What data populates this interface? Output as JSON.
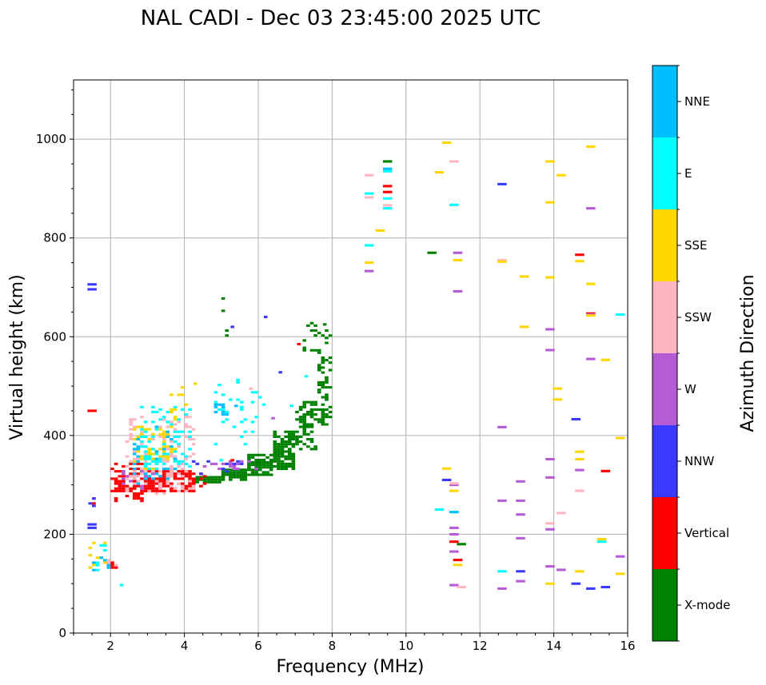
{
  "chart_data": {
    "type": "scatter",
    "title": "NAL CADI - Dec 03 23:45:00 2025 UTC",
    "xlabel": "Frequency (MHz)",
    "ylabel": "Virtual height (km)",
    "xlim": [
      1,
      16
    ],
    "ylim": [
      0,
      1120
    ],
    "xticks": [
      2,
      4,
      6,
      8,
      10,
      12,
      14,
      16
    ],
    "yticks": [
      0,
      200,
      400,
      600,
      800,
      1000
    ],
    "grid": true,
    "colorbar": {
      "title": "Azimuth Direction",
      "categories": [
        "X-mode",
        "Vertical",
        "NNW",
        "W",
        "SSW",
        "SSE",
        "E",
        "NNE"
      ],
      "colors": {
        "X-mode": "#008000",
        "Vertical": "#ff0000",
        "NNW": "#3a3aff",
        "W": "#b55bd6",
        "SSW": "#ffb6c1",
        "SSE": "#ffd700",
        "E": "#00ffff",
        "NNE": "#00bfff"
      }
    },
    "cell_size": {
      "freq_mhz": 0.1,
      "height_km": 5
    },
    "series": [
      {
        "name": "X-mode",
        "bands": [
          [
            4.3,
            5.0,
            303,
            318,
            0.9
          ],
          [
            5.0,
            5.7,
            308,
            330,
            0.85
          ],
          [
            5.7,
            6.4,
            318,
            360,
            0.8
          ],
          [
            6.4,
            7.0,
            330,
            410,
            0.7
          ],
          [
            7.0,
            7.6,
            370,
            470,
            0.55
          ],
          [
            7.6,
            8.0,
            420,
            560,
            0.4
          ],
          [
            7.2,
            8.0,
            560,
            630,
            0.15
          ],
          [
            5.0,
            5.2,
            560,
            700,
            0.15
          ]
        ],
        "points": [
          [
            9.5,
            955
          ],
          [
            10.7,
            770
          ],
          [
            11.5,
            180
          ],
          [
            7.8,
            625
          ]
        ]
      },
      {
        "name": "Vertical",
        "bands": [
          [
            2.0,
            3.0,
            265,
            345,
            0.45
          ],
          [
            3.0,
            4.3,
            285,
            330,
            0.6
          ],
          [
            1.5,
            1.6,
            255,
            275,
            0.8
          ],
          [
            4.0,
            4.6,
            290,
            330,
            0.3
          ],
          [
            1.9,
            2.2,
            130,
            150,
            0.4
          ]
        ],
        "points": [
          [
            1.5,
            450
          ],
          [
            9.5,
            905
          ],
          [
            9.5,
            893
          ],
          [
            14.7,
            766
          ],
          [
            15.0,
            647
          ],
          [
            15.4,
            328
          ],
          [
            11.3,
            185
          ],
          [
            11.4,
            148
          ],
          [
            7.1,
            585
          ],
          [
            5.3,
            350
          ]
        ]
      },
      {
        "name": "NNW",
        "bands": [
          [
            1.4,
            1.6,
            255,
            275,
            0.5
          ],
          [
            4.2,
            5.6,
            320,
            350,
            0.2
          ]
        ],
        "points": [
          [
            1.5,
            706
          ],
          [
            1.5,
            696
          ],
          [
            1.5,
            220
          ],
          [
            1.5,
            213
          ],
          [
            12.6,
            909
          ],
          [
            13.1,
            125
          ],
          [
            14.6,
            433
          ],
          [
            15.0,
            90
          ],
          [
            15.4,
            93
          ],
          [
            6.2,
            640
          ],
          [
            5.3,
            620
          ],
          [
            6.6,
            528
          ],
          [
            14.6,
            100
          ],
          [
            11.1,
            310
          ]
        ]
      },
      {
        "name": "W",
        "bands": [
          [
            2.3,
            3.2,
            290,
            330,
            0.2
          ],
          [
            4.5,
            6.0,
            330,
            350,
            0.2
          ]
        ],
        "points": [
          [
            9.0,
            733
          ],
          [
            11.4,
            770
          ],
          [
            11.4,
            692
          ],
          [
            15.0,
            860
          ],
          [
            15.0,
            555
          ],
          [
            15.0,
            645
          ],
          [
            13.9,
            615
          ],
          [
            13.9,
            573
          ],
          [
            12.6,
            417
          ],
          [
            13.9,
            352
          ],
          [
            13.9,
            315
          ],
          [
            13.1,
            307
          ],
          [
            14.7,
            330
          ],
          [
            12.6,
            268
          ],
          [
            13.1,
            268
          ],
          [
            13.1,
            240
          ],
          [
            13.9,
            210
          ],
          [
            13.1,
            192
          ],
          [
            11.3,
            300
          ],
          [
            11.3,
            213
          ],
          [
            11.3,
            200
          ],
          [
            11.3,
            165
          ],
          [
            13.9,
            135
          ],
          [
            14.2,
            128
          ],
          [
            15.8,
            155
          ],
          [
            11.3,
            97
          ],
          [
            12.6,
            90
          ],
          [
            13.1,
            105
          ],
          [
            6.4,
            435
          ]
        ]
      },
      {
        "name": "SSW",
        "bands": [
          [
            2.4,
            4.3,
            280,
            440,
            0.18
          ],
          [
            1.8,
            2.3,
            120,
            180,
            0.1
          ]
        ],
        "points": [
          [
            9.0,
            927
          ],
          [
            9.0,
            882
          ],
          [
            9.5,
            866
          ],
          [
            11.3,
            955
          ],
          [
            12.6,
            755
          ],
          [
            13.9,
            222
          ],
          [
            14.2,
            243
          ],
          [
            11.3,
            303
          ],
          [
            11.5,
            93
          ],
          [
            14.7,
            288
          ],
          [
            5.8,
            495
          ]
        ]
      },
      {
        "name": "SSE",
        "bands": [
          [
            2.6,
            3.8,
            330,
            420,
            0.25
          ],
          [
            1.4,
            1.9,
            120,
            190,
            0.15
          ],
          [
            3.6,
            4.2,
            420,
            500,
            0.1
          ]
        ],
        "points": [
          [
            11.1,
            993
          ],
          [
            15.0,
            985
          ],
          [
            10.9,
            933
          ],
          [
            14.2,
            927
          ],
          [
            13.9,
            955
          ],
          [
            13.9,
            872
          ],
          [
            9.3,
            815
          ],
          [
            9.0,
            750
          ],
          [
            11.4,
            755
          ],
          [
            12.6,
            752
          ],
          [
            13.2,
            722
          ],
          [
            13.9,
            720
          ],
          [
            14.7,
            753
          ],
          [
            15.0,
            707
          ],
          [
            15.0,
            643
          ],
          [
            13.2,
            620
          ],
          [
            15.4,
            553
          ],
          [
            14.1,
            495
          ],
          [
            14.1,
            473
          ],
          [
            15.8,
            395
          ],
          [
            14.7,
            367
          ],
          [
            14.7,
            352
          ],
          [
            11.1,
            333
          ],
          [
            11.3,
            288
          ],
          [
            15.3,
            190
          ],
          [
            14.7,
            125
          ],
          [
            13.9,
            100
          ],
          [
            15.8,
            120
          ],
          [
            11.4,
            138
          ],
          [
            4.3,
            505
          ]
        ]
      },
      {
        "name": "E",
        "bands": [
          [
            2.8,
            4.2,
            330,
            460,
            0.22
          ],
          [
            1.6,
            2.0,
            125,
            180,
            0.25
          ],
          [
            4.8,
            6.2,
            380,
            520,
            0.08
          ]
        ],
        "points": [
          [
            9.0,
            890
          ],
          [
            9.5,
            935
          ],
          [
            9.5,
            860
          ],
          [
            9.5,
            880
          ],
          [
            11.3,
            867
          ],
          [
            9.0,
            785
          ],
          [
            15.8,
            645
          ],
          [
            10.9,
            250
          ],
          [
            11.3,
            245
          ],
          [
            12.6,
            125
          ],
          [
            15.3,
            185
          ],
          [
            2.3,
            97
          ],
          [
            6.9,
            460
          ],
          [
            7.3,
            520
          ],
          [
            5.0,
            350
          ]
        ]
      },
      {
        "name": "NNE",
        "bands": [
          [
            2.6,
            3.8,
            300,
            420,
            0.12
          ],
          [
            1.5,
            2.0,
            125,
            170,
            0.1
          ],
          [
            4.8,
            5.2,
            440,
            470,
            0.3
          ]
        ],
        "points": [
          [
            11.3,
            245
          ],
          [
            9.5,
            940
          ],
          [
            5.4,
            460
          ]
        ]
      }
    ]
  }
}
